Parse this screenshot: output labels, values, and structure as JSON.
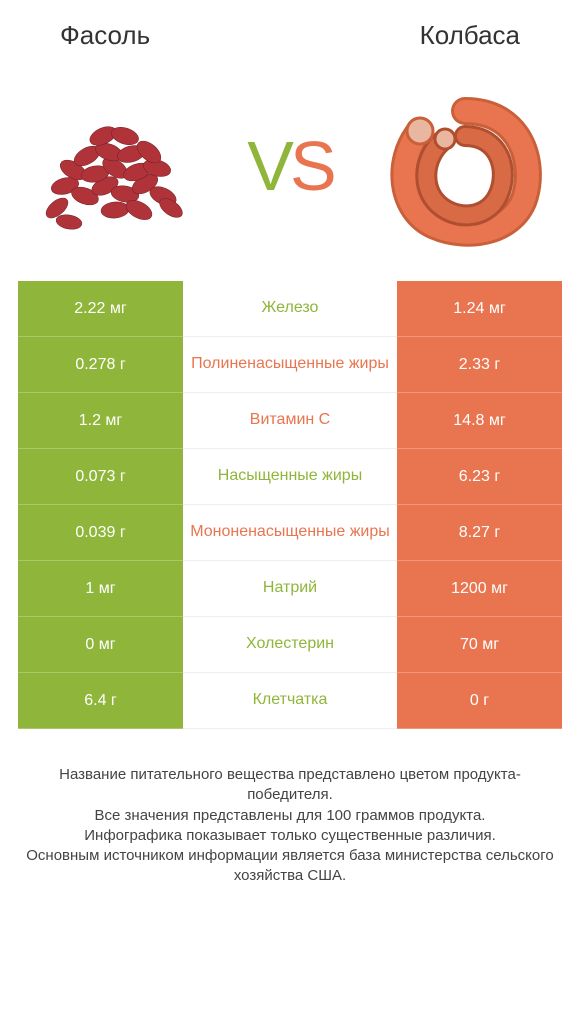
{
  "left_title": "Фасоль",
  "right_title": "Колбаса",
  "vs_v": "V",
  "vs_s": "S",
  "colors": {
    "left": "#8fb63a",
    "right": "#e8754f",
    "bg": "#ffffff",
    "text": "#333333"
  },
  "rows": [
    {
      "left": "2.22 мг",
      "label": "Железо",
      "right": "1.24 мг",
      "winner": "left"
    },
    {
      "left": "0.278 г",
      "label": "Полиненасыщенные жиры",
      "right": "2.33 г",
      "winner": "right"
    },
    {
      "left": "1.2 мг",
      "label": "Витамин C",
      "right": "14.8 мг",
      "winner": "right"
    },
    {
      "left": "0.073 г",
      "label": "Насыщенные жиры",
      "right": "6.23 г",
      "winner": "left"
    },
    {
      "left": "0.039 г",
      "label": "Мононенасыщенные жиры",
      "right": "8.27 г",
      "winner": "right"
    },
    {
      "left": "1 мг",
      "label": "Натрий",
      "right": "1200 мг",
      "winner": "left"
    },
    {
      "left": "0 мг",
      "label": "Холестерин",
      "right": "70 мг",
      "winner": "left"
    },
    {
      "left": "6.4 г",
      "label": "Клетчатка",
      "right": "0 г",
      "winner": "left"
    }
  ],
  "footer_lines": [
    "Название питательного вещества представлено цветом продукта-победителя.",
    "Все значения представлены для 100 граммов продукта.",
    "Инфографика показывает только существенные различия.",
    "Основным источником информации является база министерства сельского хозяйства США."
  ]
}
